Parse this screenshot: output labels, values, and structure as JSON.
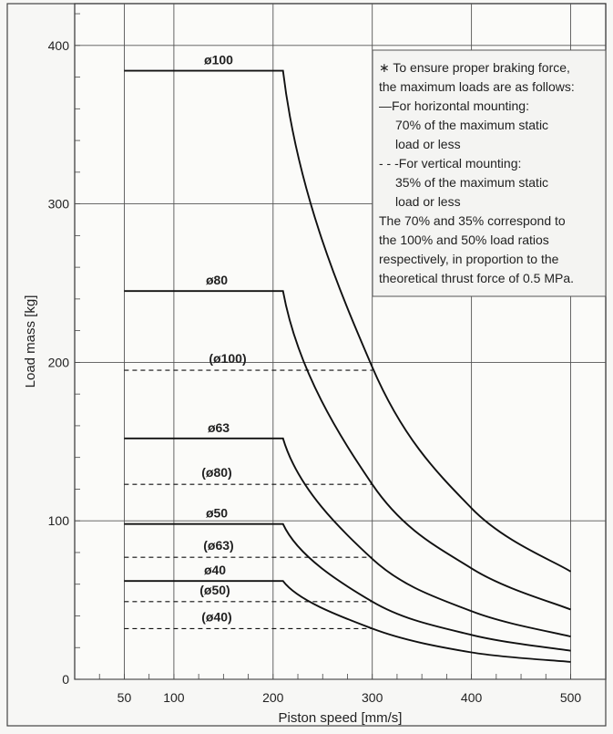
{
  "chart_data": {
    "type": "line",
    "xlabel": "Piston speed [mm/s]",
    "ylabel": "Load mass [kg]",
    "xlim": [
      0,
      510
    ],
    "ylim": [
      0,
      420
    ],
    "x_tick_values": [
      50,
      100,
      200,
      300,
      400,
      500
    ],
    "x_tick_labels": [
      "50",
      "100",
      "200",
      "300",
      "400",
      "500"
    ],
    "y_tick_values": [
      0,
      100,
      200,
      300,
      400
    ],
    "y_tick_labels": [
      "0",
      "100",
      "200",
      "300",
      "400"
    ],
    "x_minor_step": 25,
    "y_minor_step": 20,
    "grid": true,
    "legend": "top-right",
    "series": [
      {
        "name": "ø100",
        "style": "solid",
        "points": [
          [
            50,
            384
          ],
          [
            210,
            384
          ],
          [
            300,
            197
          ],
          [
            400,
            108
          ],
          [
            500,
            68
          ]
        ]
      },
      {
        "name": "ø80",
        "style": "solid",
        "points": [
          [
            50,
            245
          ],
          [
            210,
            245
          ],
          [
            300,
            123
          ],
          [
            400,
            70
          ],
          [
            500,
            44
          ]
        ]
      },
      {
        "name": "ø63",
        "style": "solid",
        "points": [
          [
            50,
            152
          ],
          [
            210,
            152
          ],
          [
            300,
            76
          ],
          [
            400,
            43
          ],
          [
            500,
            27
          ]
        ]
      },
      {
        "name": "ø50",
        "style": "solid",
        "points": [
          [
            50,
            98
          ],
          [
            210,
            98
          ],
          [
            300,
            49
          ],
          [
            400,
            28
          ],
          [
            500,
            18
          ]
        ]
      },
      {
        "name": "ø40",
        "style": "solid",
        "points": [
          [
            50,
            62
          ],
          [
            210,
            62
          ],
          [
            300,
            32
          ],
          [
            400,
            17
          ],
          [
            500,
            11
          ]
        ]
      },
      {
        "name": "(ø100)",
        "style": "dashed",
        "points": [
          [
            50,
            195
          ],
          [
            300,
            195
          ]
        ]
      },
      {
        "name": "(ø80)",
        "style": "dashed",
        "points": [
          [
            50,
            123
          ],
          [
            300,
            123
          ]
        ]
      },
      {
        "name": "(ø63)",
        "style": "dashed",
        "points": [
          [
            50,
            77
          ],
          [
            300,
            77
          ]
        ]
      },
      {
        "name": "(ø50)",
        "style": "dashed",
        "points": [
          [
            50,
            49
          ],
          [
            300,
            49
          ]
        ]
      },
      {
        "name": "(ø40)",
        "style": "dashed",
        "points": [
          [
            50,
            32
          ],
          [
            300,
            32
          ]
        ]
      }
    ],
    "annotation": {
      "lines": [
        "∗ To ensure proper braking force,",
        "the maximum loads are as follows:",
        "—For horizontal mounting:",
        "70% of the maximum static",
        "load or less",
        "- - -For vertical mounting:",
        "35% of the maximum static",
        "load or less",
        "The 70% and 35% correspond to",
        "the 100% and 50% load ratios",
        "respectively, in proportion to the",
        "theoretical thrust force of 0.5 MPa."
      ]
    }
  }
}
